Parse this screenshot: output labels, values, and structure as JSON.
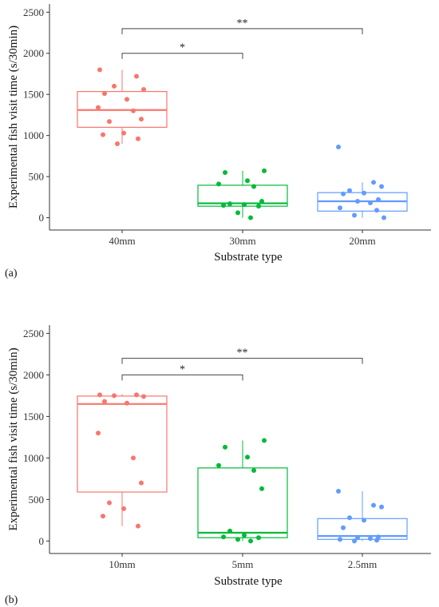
{
  "chart_data": [
    {
      "type": "box",
      "panel_label": "(a)",
      "xlabel": "Substrate type",
      "ylabel": "Experimental fish visit time (s/30min)",
      "ylim": [
        -150,
        2600
      ],
      "yticks": [
        0,
        500,
        1000,
        1500,
        2000,
        2500
      ],
      "categories": [
        "40mm",
        "30mm",
        "20mm"
      ],
      "colors": [
        "#F8766D",
        "#00BA38",
        "#619CFF"
      ],
      "boxes": [
        {
          "category": "40mm",
          "whisker_low": 900,
          "q1": 1100,
          "median": 1310,
          "q3": 1535,
          "whisker_high": 1800
        },
        {
          "category": "30mm",
          "whisker_low": 0,
          "q1": 140,
          "median": 175,
          "q3": 395,
          "whisker_high": 570
        },
        {
          "category": "20mm",
          "whisker_low": 0,
          "q1": 80,
          "median": 200,
          "q3": 305,
          "whisker_high": 430
        }
      ],
      "points": [
        [
          1800,
          1720,
          1600,
          1560,
          1510,
          1440,
          1340,
          1300,
          1200,
          1170,
          1030,
          1010,
          960,
          900
        ],
        [
          570,
          550,
          450,
          410,
          380,
          200,
          170,
          160,
          150,
          140,
          60,
          0
        ],
        [
          860,
          430,
          380,
          330,
          300,
          290,
          220,
          200,
          180,
          120,
          90,
          30,
          0
        ]
      ],
      "significance": [
        {
          "from": "40mm",
          "to": "30mm",
          "label": "*",
          "y": 2000
        },
        {
          "from": "40mm",
          "to": "20mm",
          "label": "**",
          "y": 2300
        }
      ]
    },
    {
      "type": "box",
      "panel_label": "(b)",
      "xlabel": "Substrate type",
      "ylabel": "Experimental fish visit time (s/30min)",
      "ylim": [
        -150,
        2600
      ],
      "yticks": [
        0,
        500,
        1000,
        1500,
        2000,
        2500
      ],
      "categories": [
        "10mm",
        "5mm",
        "2.5mm"
      ],
      "colors": [
        "#F8766D",
        "#00BA38",
        "#619CFF"
      ],
      "boxes": [
        {
          "category": "10mm",
          "whisker_low": 180,
          "q1": 590,
          "median": 1650,
          "q3": 1745,
          "whisker_high": 1770
        },
        {
          "category": "5mm",
          "whisker_low": 0,
          "q1": 40,
          "median": 100,
          "q3": 880,
          "whisker_high": 1210
        },
        {
          "category": "2.5mm",
          "whisker_low": 0,
          "q1": 20,
          "median": 60,
          "q3": 270,
          "whisker_high": 600
        }
      ],
      "points": [
        [
          1760,
          1760,
          1750,
          1740,
          1680,
          1660,
          1300,
          1000,
          700,
          460,
          390,
          300,
          180
        ],
        [
          1210,
          1130,
          1010,
          910,
          850,
          630,
          120,
          70,
          50,
          40,
          20,
          0
        ],
        [
          600,
          430,
          410,
          280,
          250,
          160,
          50,
          40,
          30,
          20,
          10,
          0
        ]
      ],
      "significance": [
        {
          "from": "10mm",
          "to": "5mm",
          "label": "*",
          "y": 2000
        },
        {
          "from": "10mm",
          "to": "2.5mm",
          "label": "**",
          "y": 2200
        }
      ]
    }
  ]
}
